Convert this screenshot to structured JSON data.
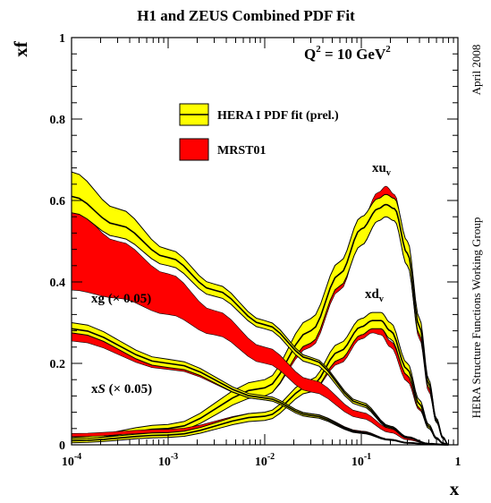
{
  "chart_data": {
    "type": "area",
    "title": "H1 and ZEUS Combined PDF Fit",
    "xlabel": "x",
    "ylabel": "xf",
    "x_scale": "log",
    "xlim": [
      0.0001,
      1
    ],
    "ylim": [
      0,
      1
    ],
    "x_ticks": [
      {
        "value": 0.0001,
        "base": "10",
        "exp": "-4"
      },
      {
        "value": 0.001,
        "base": "10",
        "exp": "-3"
      },
      {
        "value": 0.01,
        "base": "10",
        "exp": "-2"
      },
      {
        "value": 0.1,
        "base": "10",
        "exp": "-1"
      },
      {
        "value": 1,
        "base": "1",
        "exp": ""
      }
    ],
    "y_ticks": [
      {
        "value": 0,
        "label": "0"
      },
      {
        "value": 0.2,
        "label": "0.2"
      },
      {
        "value": 0.4,
        "label": "0.4"
      },
      {
        "value": 0.6,
        "label": "0.6"
      },
      {
        "value": 0.8,
        "label": "0.8"
      },
      {
        "value": 1,
        "label": "1"
      }
    ],
    "scale_label": {
      "prefix": "Q",
      "sup": "2",
      "mid": " = 10 GeV",
      "sup2": "2"
    },
    "side_text_top": "April 2008",
    "side_text_bottom": "HERA Structure Functions Working Group",
    "legend": {
      "placement": "upper-center",
      "entries": [
        {
          "label": "HERA I PDF fit (prel.)",
          "fill": "#ffff00",
          "center_line": true
        },
        {
          "label": "MRST01",
          "fill": "#ff0000",
          "center_line": false
        }
      ]
    },
    "annotations": {
      "xuv": {
        "base": "xu",
        "sub": "v"
      },
      "xdv": {
        "base": "xd",
        "sub": "v"
      },
      "xg": {
        "text": "xg (× 0.05)"
      },
      "xS": {
        "pre": "x",
        "ital": "S",
        "post": " (× 0.05)"
      }
    },
    "series": [
      {
        "name": "MRST01",
        "role": "xuv",
        "style": "red",
        "x": [
          0.0001,
          0.001,
          0.01,
          0.03,
          0.06,
          0.1,
          0.15,
          0.18,
          0.22,
          0.3,
          0.4,
          0.5,
          0.6,
          0.7,
          0.8
        ],
        "lo": [
          0.01,
          0.035,
          0.12,
          0.24,
          0.38,
          0.5,
          0.58,
          0.595,
          0.575,
          0.44,
          0.26,
          0.13,
          0.055,
          0.016,
          0.0
        ],
        "hi": [
          0.014,
          0.045,
          0.14,
          0.27,
          0.42,
          0.55,
          0.62,
          0.635,
          0.615,
          0.48,
          0.29,
          0.15,
          0.065,
          0.02,
          0.0
        ]
      },
      {
        "name": "HERA I PDF fit (prel.)",
        "role": "xuv",
        "style": "yellow",
        "x": [
          0.0001,
          0.001,
          0.01,
          0.03,
          0.06,
          0.1,
          0.15,
          0.18,
          0.22,
          0.3,
          0.4,
          0.5,
          0.6,
          0.7,
          0.8
        ],
        "lo": [
          0.006,
          0.03,
          0.12,
          0.25,
          0.39,
          0.49,
          0.55,
          0.56,
          0.55,
          0.44,
          0.27,
          0.14,
          0.055,
          0.015,
          0.0
        ],
        "mid": [
          0.012,
          0.04,
          0.14,
          0.28,
          0.42,
          0.53,
          0.58,
          0.59,
          0.58,
          0.47,
          0.29,
          0.15,
          0.06,
          0.017,
          0.0
        ],
        "hi": [
          0.018,
          0.05,
          0.16,
          0.31,
          0.45,
          0.56,
          0.605,
          0.615,
          0.605,
          0.5,
          0.31,
          0.16,
          0.065,
          0.019,
          0.0
        ]
      },
      {
        "name": "MRST01",
        "role": "xdv",
        "style": "red",
        "x": [
          0.0001,
          0.001,
          0.01,
          0.03,
          0.06,
          0.1,
          0.13,
          0.16,
          0.2,
          0.3,
          0.4,
          0.5,
          0.6,
          0.7,
          0.8
        ],
        "lo": [
          0.02,
          0.03,
          0.07,
          0.13,
          0.2,
          0.26,
          0.275,
          0.27,
          0.24,
          0.155,
          0.085,
          0.04,
          0.015,
          0.004,
          0.0
        ],
        "hi": [
          0.028,
          0.038,
          0.08,
          0.145,
          0.22,
          0.28,
          0.29,
          0.285,
          0.255,
          0.17,
          0.095,
          0.045,
          0.018,
          0.005,
          0.0
        ]
      },
      {
        "name": "HERA I PDF fit (prel.)",
        "role": "xdv",
        "style": "yellow",
        "x": [
          0.0001,
          0.001,
          0.01,
          0.03,
          0.06,
          0.1,
          0.13,
          0.16,
          0.2,
          0.3,
          0.4,
          0.5,
          0.6,
          0.7,
          0.8
        ],
        "lo": [
          0.005,
          0.018,
          0.06,
          0.13,
          0.21,
          0.27,
          0.285,
          0.285,
          0.26,
          0.17,
          0.09,
          0.04,
          0.014,
          0.003,
          0.0
        ],
        "mid": [
          0.01,
          0.024,
          0.07,
          0.145,
          0.23,
          0.29,
          0.305,
          0.305,
          0.28,
          0.185,
          0.1,
          0.045,
          0.016,
          0.004,
          0.0
        ],
        "hi": [
          0.015,
          0.03,
          0.08,
          0.16,
          0.25,
          0.31,
          0.325,
          0.325,
          0.3,
          0.2,
          0.11,
          0.05,
          0.018,
          0.005,
          0.0
        ]
      },
      {
        "name": "MRST01",
        "role": "xg (x0.05)",
        "style": "red",
        "x": [
          0.0001,
          0.0003,
          0.001,
          0.003,
          0.01,
          0.03,
          0.1,
          0.2,
          0.3,
          0.5,
          0.8
        ],
        "lo": [
          0.38,
          0.36,
          0.32,
          0.27,
          0.2,
          0.13,
          0.065,
          0.03,
          0.012,
          0.002,
          0.0
        ],
        "hi": [
          0.58,
          0.5,
          0.42,
          0.33,
          0.24,
          0.16,
          0.08,
          0.04,
          0.016,
          0.003,
          0.0
        ]
      },
      {
        "name": "HERA I PDF fit (prel.)",
        "role": "xg (x0.05)",
        "style": "yellow",
        "x": [
          0.0001,
          0.0003,
          0.001,
          0.003,
          0.01,
          0.03,
          0.1,
          0.2,
          0.3,
          0.5,
          0.8
        ],
        "lo": [
          0.57,
          0.51,
          0.44,
          0.365,
          0.285,
          0.2,
          0.095,
          0.04,
          0.016,
          0.002,
          0.0
        ],
        "mid": [
          0.61,
          0.54,
          0.46,
          0.38,
          0.295,
          0.21,
          0.1,
          0.043,
          0.018,
          0.003,
          0.0
        ],
        "hi": [
          0.67,
          0.58,
          0.48,
          0.395,
          0.305,
          0.215,
          0.105,
          0.046,
          0.02,
          0.003,
          0.0
        ]
      },
      {
        "name": "MRST01",
        "role": "xS (x0.05)",
        "style": "red",
        "x": [
          0.0001,
          0.001,
          0.01,
          0.03,
          0.1,
          0.2,
          0.3,
          0.5,
          0.8
        ],
        "lo": [
          0.255,
          0.185,
          0.11,
          0.07,
          0.03,
          0.012,
          0.005,
          0.001,
          0.0
        ],
        "hi": [
          0.275,
          0.2,
          0.12,
          0.077,
          0.034,
          0.014,
          0.006,
          0.001,
          0.0
        ]
      },
      {
        "name": "HERA I PDF fit (prel.)",
        "role": "xS (x0.05)",
        "style": "yellow",
        "x": [
          0.0001,
          0.001,
          0.01,
          0.03,
          0.1,
          0.2,
          0.3,
          0.5,
          0.8
        ],
        "lo": [
          0.275,
          0.19,
          0.11,
          0.068,
          0.028,
          0.011,
          0.004,
          0.001,
          0.0
        ],
        "mid": [
          0.285,
          0.2,
          0.115,
          0.072,
          0.03,
          0.012,
          0.005,
          0.001,
          0.0
        ],
        "hi": [
          0.3,
          0.21,
          0.12,
          0.076,
          0.032,
          0.013,
          0.006,
          0.001,
          0.0
        ]
      }
    ]
  }
}
